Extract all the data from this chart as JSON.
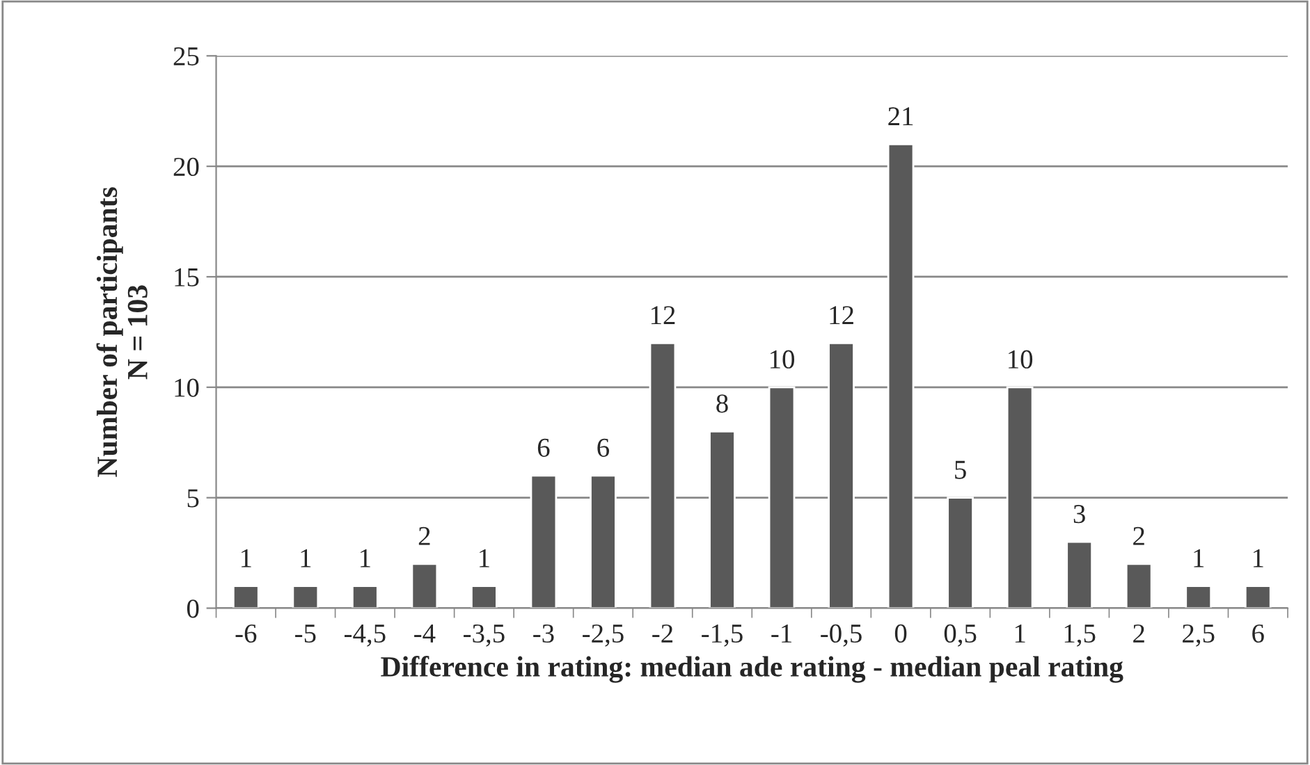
{
  "chart_data": {
    "type": "bar",
    "xlabel": "Difference in rating: median ade rating - median peal rating",
    "ylabel": "Number of participants\nN = 103",
    "categories": [
      "-6",
      "-5",
      "-4,5",
      "-4",
      "-3,5",
      "-3",
      "-2,5",
      "-2",
      "-1,5",
      "-1",
      "-0,5",
      "0",
      "0,5",
      "1",
      "1,5",
      "2",
      "2,5",
      "6"
    ],
    "values": [
      1,
      1,
      1,
      2,
      1,
      6,
      6,
      12,
      8,
      10,
      12,
      21,
      5,
      10,
      3,
      2,
      1,
      1
    ],
    "color": "#595959",
    "ylim": [
      0,
      25
    ],
    "yticks": [
      0,
      5,
      10,
      15,
      20,
      25
    ],
    "grid": "y",
    "legend": false,
    "data_labels": true
  }
}
